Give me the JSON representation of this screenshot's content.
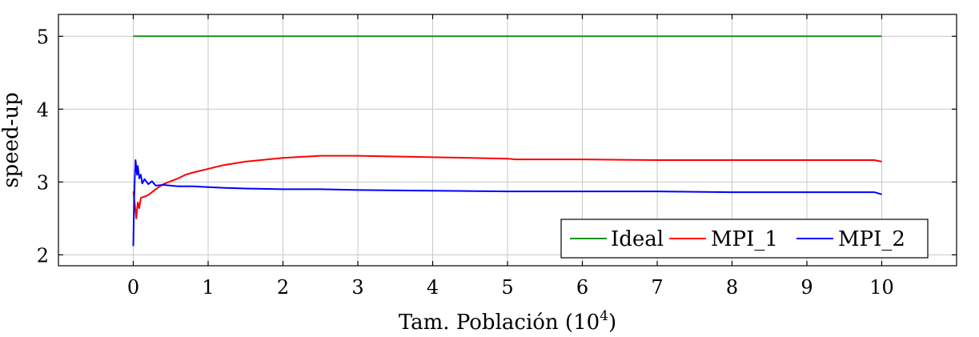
{
  "chart_data": {
    "type": "line",
    "xlabel_main": "Tam. Población (10",
    "xlabel_exp": "4",
    "xlabel_close": ")",
    "ylabel": "speed-up",
    "xlim": [
      -1,
      11
    ],
    "ylim": [
      1.85,
      5.3
    ],
    "grid": true,
    "legend_position": "bottom-right",
    "xticks": [
      0,
      1,
      2,
      3,
      4,
      5,
      6,
      7,
      8,
      9,
      10
    ],
    "yticks": [
      2,
      3,
      4,
      5
    ],
    "series": [
      {
        "name": "Ideal",
        "color": "#1a8f1a",
        "points": [
          [
            0,
            5
          ],
          [
            10,
            5
          ]
        ]
      },
      {
        "name": "MPI_1",
        "color": "#ff0000",
        "points": [
          [
            0,
            2.87
          ],
          [
            0.02,
            2.7
          ],
          [
            0.04,
            2.5
          ],
          [
            0.06,
            2.72
          ],
          [
            0.08,
            2.64
          ],
          [
            0.1,
            2.78
          ],
          [
            0.15,
            2.8
          ],
          [
            0.2,
            2.82
          ],
          [
            0.3,
            2.9
          ],
          [
            0.4,
            2.97
          ],
          [
            0.5,
            3.01
          ],
          [
            0.6,
            3.05
          ],
          [
            0.7,
            3.1
          ],
          [
            0.8,
            3.13
          ],
          [
            1.0,
            3.18
          ],
          [
            1.2,
            3.23
          ],
          [
            1.5,
            3.28
          ],
          [
            2.0,
            3.33
          ],
          [
            2.5,
            3.36
          ],
          [
            3.0,
            3.36
          ],
          [
            3.5,
            3.35
          ],
          [
            4.0,
            3.34
          ],
          [
            4.5,
            3.33
          ],
          [
            5.0,
            3.32
          ],
          [
            5.1,
            3.31
          ],
          [
            6.0,
            3.31
          ],
          [
            7.0,
            3.3
          ],
          [
            8.0,
            3.3
          ],
          [
            9.0,
            3.3
          ],
          [
            9.9,
            3.3
          ],
          [
            10.0,
            3.28
          ]
        ]
      },
      {
        "name": "MPI_2",
        "color": "#0000ff",
        "points": [
          [
            0,
            2.12
          ],
          [
            0.01,
            2.7
          ],
          [
            0.02,
            3.05
          ],
          [
            0.03,
            3.3
          ],
          [
            0.04,
            3.2
          ],
          [
            0.05,
            3.1
          ],
          [
            0.06,
            3.22
          ],
          [
            0.08,
            3.05
          ],
          [
            0.1,
            3.1
          ],
          [
            0.12,
            2.98
          ],
          [
            0.15,
            3.04
          ],
          [
            0.2,
            2.97
          ],
          [
            0.25,
            3.01
          ],
          [
            0.3,
            2.95
          ],
          [
            0.4,
            2.96
          ],
          [
            0.5,
            2.95
          ],
          [
            0.6,
            2.94
          ],
          [
            0.8,
            2.94
          ],
          [
            1.0,
            2.93
          ],
          [
            1.2,
            2.92
          ],
          [
            1.5,
            2.91
          ],
          [
            2.0,
            2.9
          ],
          [
            2.5,
            2.9
          ],
          [
            3.0,
            2.89
          ],
          [
            4.0,
            2.88
          ],
          [
            5.0,
            2.87
          ],
          [
            6.0,
            2.87
          ],
          [
            7.0,
            2.87
          ],
          [
            8.0,
            2.86
          ],
          [
            9.0,
            2.86
          ],
          [
            9.9,
            2.86
          ],
          [
            10.0,
            2.83
          ]
        ]
      }
    ]
  }
}
